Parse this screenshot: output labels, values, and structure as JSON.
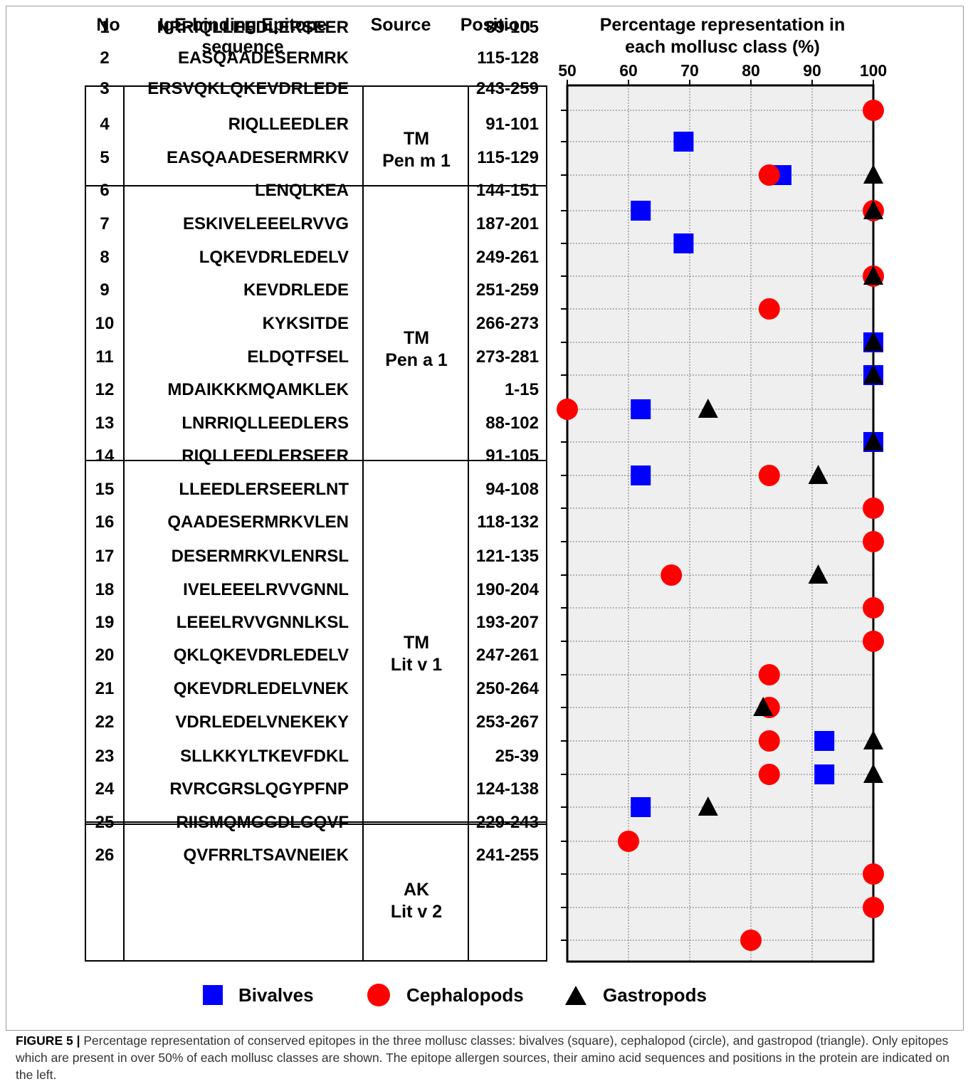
{
  "headers": {
    "no": "No",
    "sequence": "IgE-binding Epitope\nsequence",
    "source": "Source",
    "position": "Position",
    "percentage": "Percentage representation in\neach mollusc class (%)"
  },
  "source_groups": [
    {
      "line1": "TM",
      "line2": "Pen m 1"
    },
    {
      "line1": "TM",
      "line2": "Pen a 1"
    },
    {
      "line1": "TM",
      "line2": "Lit v 1"
    },
    {
      "line1": "AK",
      "line2": "Lit v 2"
    }
  ],
  "rows": [
    {
      "no": "1",
      "sequence": "NRRIQLLEEDLERSEER",
      "position": "89-105"
    },
    {
      "no": "2",
      "sequence": "EASQAADESERMRK",
      "position": "115-128"
    },
    {
      "no": "3",
      "sequence": "ERSVQKLQKEVDRLEDE",
      "position": "243-259"
    },
    {
      "no": "4",
      "sequence": "RIQLLEEDLER",
      "position": "91-101"
    },
    {
      "no": "5",
      "sequence": "EASQAADESERMRKV",
      "position": "115-129"
    },
    {
      "no": "6",
      "sequence": "LENQLKEA",
      "position": "144-151"
    },
    {
      "no": "7",
      "sequence": "ESKIVELEEELRVVG",
      "position": "187-201"
    },
    {
      "no": "8",
      "sequence": "LQKEVDRLEDELV",
      "position": "249-261"
    },
    {
      "no": "9",
      "sequence": "KEVDRLEDE",
      "position": "251-259"
    },
    {
      "no": "10",
      "sequence": "KYKSITDE",
      "position": "266-273"
    },
    {
      "no": "11",
      "sequence": "ELDQTFSEL",
      "position": "273-281"
    },
    {
      "no": "12",
      "sequence": "MDAIKKKMQAMKLEK",
      "position": "1-15"
    },
    {
      "no": "13",
      "sequence": "LNRRIQLLEEDLERS",
      "position": "88-102"
    },
    {
      "no": "14",
      "sequence": "RIQLLEEDLERSEER",
      "position": "91-105"
    },
    {
      "no": "15",
      "sequence": "LLEEDLERSEERLNT",
      "position": "94-108"
    },
    {
      "no": "16",
      "sequence": "QAADESERMRKVLEN",
      "position": "118-132"
    },
    {
      "no": "17",
      "sequence": "DESERMRKVLENRSL",
      "position": "121-135"
    },
    {
      "no": "18",
      "sequence": "IVELEEELRVVGNNL",
      "position": "190-204"
    },
    {
      "no": "19",
      "sequence": "LEEELRVVGNNLKSL",
      "position": "193-207"
    },
    {
      "no": "20",
      "sequence": "QKLQKEVDRLEDELV",
      "position": "247-261"
    },
    {
      "no": "21",
      "sequence": "QKEVDRLEDELVNEK",
      "position": "250-264"
    },
    {
      "no": "22",
      "sequence": "VDRLEDELVNEKEKY",
      "position": "253-267"
    },
    {
      "no": "23",
      "sequence": "SLLKKYLTKEVFDKL",
      "position": "25-39"
    },
    {
      "no": "24",
      "sequence": "RVRCGRSLQGYPFNP",
      "position": "124-138"
    },
    {
      "no": "25",
      "sequence": "RIISMQMGGDLGQVF",
      "position": "229-243"
    },
    {
      "no": "26",
      "sequence": "QVFRRLTSAVNEIEK",
      "position": "241-255"
    }
  ],
  "chart_data": {
    "type": "scatter",
    "title": "Percentage representation in each mollusc class (%)",
    "xlim": [
      50,
      100
    ],
    "xticks": [
      "50",
      "60",
      "70",
      "80",
      "90",
      "100"
    ],
    "grid": true,
    "legend_position": "bottom",
    "categories": [
      "1",
      "2",
      "3",
      "4",
      "5",
      "6",
      "7",
      "8",
      "9",
      "10",
      "11",
      "12",
      "13",
      "14",
      "15",
      "16",
      "17",
      "18",
      "19",
      "20",
      "21",
      "22",
      "23",
      "24",
      "25",
      "26"
    ],
    "series": [
      {
        "name": "Bivalves",
        "marker": "square",
        "color": "#0000ff",
        "values": [
          null,
          69,
          85,
          62,
          69,
          null,
          null,
          100,
          100,
          62,
          100,
          62,
          null,
          null,
          null,
          null,
          null,
          null,
          null,
          92,
          92,
          62,
          null,
          null,
          null,
          null
        ]
      },
      {
        "name": "Cephalopods",
        "marker": "circle",
        "color": "#ff0000",
        "values": [
          100,
          null,
          83,
          100,
          null,
          100,
          83,
          null,
          null,
          50,
          null,
          83,
          100,
          100,
          67,
          100,
          100,
          83,
          83,
          83,
          83,
          null,
          60,
          100,
          100,
          80
        ]
      },
      {
        "name": "Gastropods",
        "marker": "triangle",
        "color": "#000000",
        "values": [
          null,
          null,
          100,
          100,
          null,
          100,
          null,
          100,
          100,
          73,
          100,
          91,
          null,
          null,
          91,
          null,
          null,
          null,
          82,
          100,
          100,
          73,
          null,
          null,
          null,
          null
        ]
      }
    ]
  },
  "caption": {
    "label": "FIGURE 5 |",
    "text": " Percentage representation of conserved epitopes in the three mollusc classes: bivalves (square), cephalopod (circle), and gastropod (triangle). Only epitopes which are present in over 50% of each mollusc classes are shown. The epitope allergen sources, their amino acid sequences and positions in the protein are indicated on the left."
  }
}
